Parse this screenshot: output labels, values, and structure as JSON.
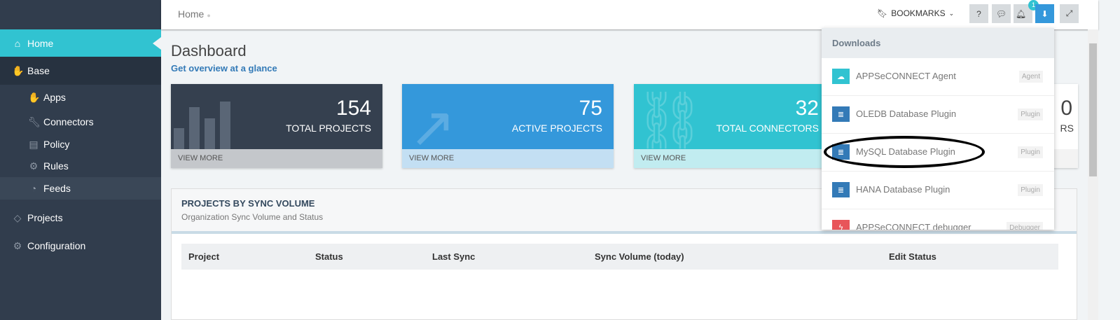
{
  "sidebar": {
    "items": [
      {
        "label": "Home",
        "icon": "home-icon"
      },
      {
        "label": "Base",
        "icon": "hand-icon"
      },
      {
        "label": "Apps",
        "icon": "hand-icon"
      },
      {
        "label": "Connectors",
        "icon": "wrench-icon"
      },
      {
        "label": "Policy",
        "icon": "book-icon"
      },
      {
        "label": "Rules",
        "icon": "gear-icon"
      },
      {
        "label": "Feeds",
        "icon": "rss-icon"
      },
      {
        "label": "Projects",
        "icon": "tag-icon"
      },
      {
        "label": "Configuration",
        "icon": "gear-icon"
      }
    ]
  },
  "header": {
    "breadcrumb": "Home",
    "bookmarks": "BOOKMARKS",
    "notification_count": "1"
  },
  "page": {
    "title": "Dashboard",
    "subtitle": "Get overview at a glance"
  },
  "cards": [
    {
      "value": "154",
      "label": "TOTAL PROJECTS",
      "more": "VIEW MORE",
      "color": "#35404f"
    },
    {
      "value": "75",
      "label": "ACTIVE PROJECTS",
      "more": "VIEW MORE",
      "color": "#3498db"
    },
    {
      "value": "32",
      "label": "TOTAL CONNECTORS",
      "more": "VIEW MORE",
      "color": "#31c3d1"
    },
    {
      "value": "0",
      "label": "RS"
    }
  ],
  "panel": {
    "title": "PROJECTS BY SYNC VOLUME",
    "subtitle": "Organization Sync Volume and Status",
    "columns": [
      "Project",
      "Status",
      "Last Sync",
      "Sync Volume (today)",
      "Edit Status"
    ]
  },
  "downloads": {
    "title": "Downloads",
    "items": [
      {
        "name": "APPSeCONNECT Agent",
        "tag": "Agent",
        "icon": "cloud-download-icon",
        "color": "#31c3d1"
      },
      {
        "name": "OLEDB Database Plugin",
        "tag": "Plugin",
        "icon": "database-icon",
        "color": "#337ab7"
      },
      {
        "name": "MySQL Database Plugin",
        "tag": "Plugin",
        "icon": "database-icon",
        "color": "#337ab7"
      },
      {
        "name": "HANA Database Plugin",
        "tag": "Plugin",
        "icon": "database-icon",
        "color": "#337ab7"
      },
      {
        "name": "APPSeCONNECT debugger",
        "tag": "Debugger",
        "icon": "bolt-icon",
        "color": "#e8555a"
      }
    ]
  }
}
